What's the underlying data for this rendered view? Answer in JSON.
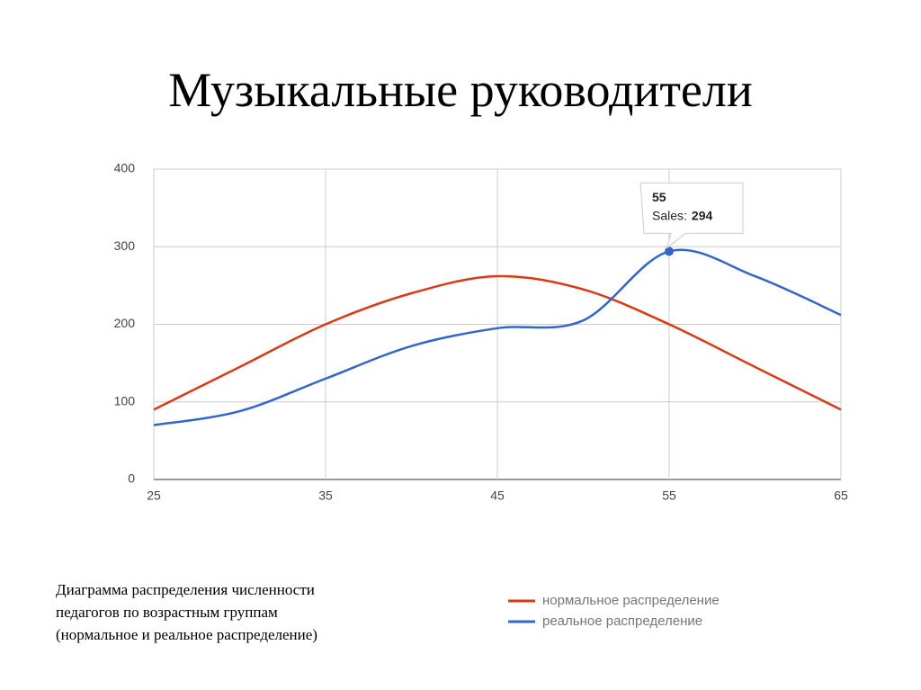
{
  "chart_data": {
    "type": "line",
    "title": "Музыкальные руководители",
    "x": [
      25,
      30,
      35,
      40,
      45,
      50,
      55,
      60,
      65
    ],
    "xlim": [
      25,
      65
    ],
    "xticks": [
      25,
      35,
      45,
      55,
      65
    ],
    "ylim": [
      0,
      400
    ],
    "yticks": [
      0,
      100,
      200,
      300,
      400
    ],
    "grid": true,
    "series": [
      {
        "name": "нормальное распределение",
        "color": "#dc3912",
        "values": [
          90,
          145,
          200,
          240,
          262,
          245,
          200,
          145,
          90
        ]
      },
      {
        "name": "реальное распределение",
        "color": "#3366cc",
        "values": [
          70,
          88,
          130,
          172,
          195,
          205,
          294,
          262,
          212
        ]
      }
    ],
    "tooltip": {
      "label": "Sales:"
    },
    "caption": [
      "Диаграмма распределения численности",
      "педагогов по возрастным группам",
      "(нормальное и реальное распределение)"
    ]
  }
}
